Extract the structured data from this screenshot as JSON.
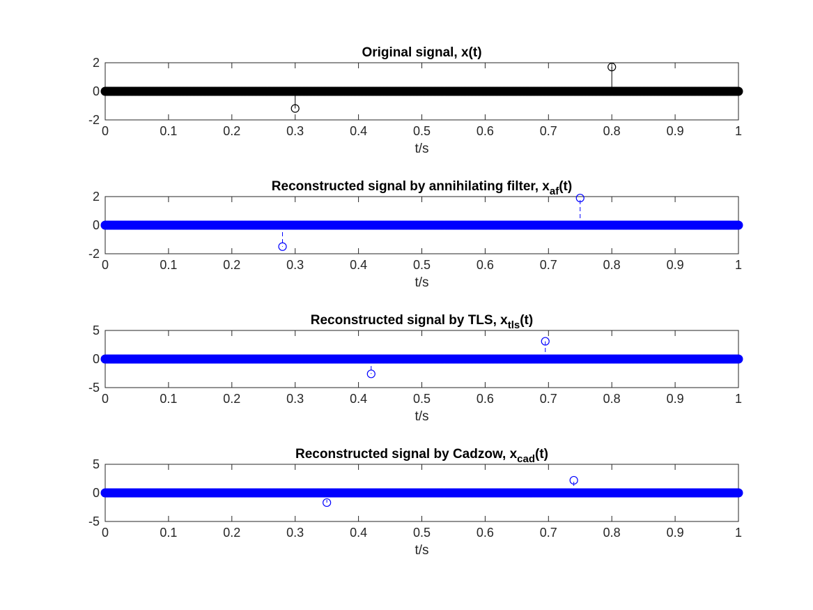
{
  "chart_data": [
    {
      "type": "stem",
      "title": "Original signal, x(t)",
      "title_main": "Original signal, x(t)",
      "title_sub": "",
      "title_tail": "",
      "xlabel": "t/s",
      "xlim": [
        0,
        1
      ],
      "ylim": [
        -2,
        2
      ],
      "xticks": [
        "0",
        "0.1",
        "0.2",
        "0.3",
        "0.4",
        "0.5",
        "0.6",
        "0.7",
        "0.8",
        "0.9",
        "1"
      ],
      "yticks": [
        "-2",
        "0",
        "2"
      ],
      "color": "#000000",
      "linestyle": "solid",
      "baseline_samples": 0,
      "spikes": [
        {
          "t": 0.3,
          "value": -1.2
        },
        {
          "t": 0.8,
          "value": 1.7
        }
      ]
    },
    {
      "type": "stem",
      "title": "Reconstructed signal by annihilating filter, x_af(t)",
      "title_main": "Reconstructed signal by annihilating filter, x",
      "title_sub": "af",
      "title_tail": "(t)",
      "xlabel": "t/s",
      "xlim": [
        0,
        1
      ],
      "ylim": [
        -2,
        2
      ],
      "xticks": [
        "0",
        "0.1",
        "0.2",
        "0.3",
        "0.4",
        "0.5",
        "0.6",
        "0.7",
        "0.8",
        "0.9",
        "1"
      ],
      "yticks": [
        "-2",
        "0",
        "2"
      ],
      "color": "#0000ff",
      "linestyle": "dashed",
      "baseline_samples": 0,
      "spikes": [
        {
          "t": 0.28,
          "value": -1.5
        },
        {
          "t": 0.75,
          "value": 1.9
        }
      ]
    },
    {
      "type": "stem",
      "title": "Reconstructed signal by TLS, x_tls(t)",
      "title_main": "Reconstructed signal by TLS, x",
      "title_sub": "tls",
      "title_tail": "(t)",
      "xlabel": "t/s",
      "xlim": [
        0,
        1
      ],
      "ylim": [
        -5,
        5
      ],
      "xticks": [
        "0",
        "0.1",
        "0.2",
        "0.3",
        "0.4",
        "0.5",
        "0.6",
        "0.7",
        "0.8",
        "0.9",
        "1"
      ],
      "yticks": [
        "-5",
        "0",
        "5"
      ],
      "color": "#0000ff",
      "linestyle": "dashed",
      "baseline_samples": 0,
      "spikes": [
        {
          "t": 0.42,
          "value": -2.6
        },
        {
          "t": 0.695,
          "value": 3.1
        }
      ]
    },
    {
      "type": "stem",
      "title": "Reconstructed signal by Cadzow, x_cad(t)",
      "title_main": "Reconstructed signal by Cadzow, x",
      "title_sub": "cad",
      "title_tail": "(t)",
      "xlabel": "t/s",
      "xlim": [
        0,
        1
      ],
      "ylim": [
        -5,
        5
      ],
      "xticks": [
        "0",
        "0.1",
        "0.2",
        "0.3",
        "0.4",
        "0.5",
        "0.6",
        "0.7",
        "0.8",
        "0.9",
        "1"
      ],
      "yticks": [
        "-5",
        "0",
        "5"
      ],
      "color": "#0000ff",
      "linestyle": "dashed",
      "baseline_samples": 0,
      "spikes": [
        {
          "t": 0.35,
          "value": -1.7
        },
        {
          "t": 0.74,
          "value": 2.2
        }
      ]
    }
  ]
}
